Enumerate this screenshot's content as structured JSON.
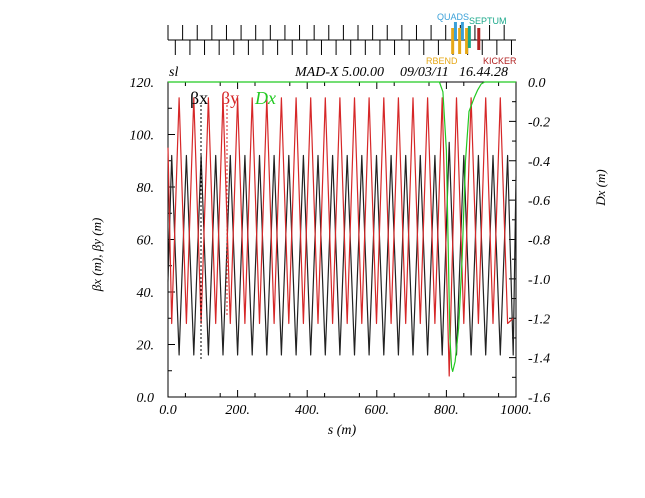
{
  "chart_data": {
    "type": "line",
    "header": {
      "left_label": "sl",
      "program": "MAD-X 5.00.00",
      "date": "09/03/11",
      "time": "16.44.28"
    },
    "xlabel": "s (m)",
    "ylabel_left": "βx (m), βy (m)",
    "ylabel_right": "Dx (m)",
    "xlim": [
      0,
      1000
    ],
    "ylim_left": [
      0,
      120
    ],
    "ylim_right": [
      -1.6,
      0
    ],
    "x_ticks": [
      0,
      200,
      400,
      600,
      800,
      1000
    ],
    "x_tick_labels": [
      "0.0",
      "200.",
      "400.",
      "600.",
      "800.",
      "1000."
    ],
    "y_left_ticks": [
      0,
      20,
      40,
      60,
      80,
      100,
      120
    ],
    "y_left_tick_labels": [
      "0.0",
      "20.",
      "40.",
      "60.",
      "80.",
      "100.",
      "120."
    ],
    "y_right_ticks": [
      0,
      -0.2,
      -0.4,
      -0.6,
      -0.8,
      -1.0,
      -1.2,
      -1.4,
      -1.6
    ],
    "y_right_tick_labels": [
      "0.0",
      "-0.2",
      "-0.4",
      "-0.6",
      "-0.8",
      "-1.0",
      "-1.2",
      "-1.4",
      "-1.6"
    ],
    "legend": [
      {
        "name": "βx",
        "color": "#000000"
      },
      {
        "name": "βy",
        "color": "#d62728"
      },
      {
        "name": "Dx",
        "color": "#22c922"
      }
    ],
    "series": [
      {
        "name": "betx",
        "axis": "left",
        "color": "#222222",
        "x": [
          0,
          10.5,
          32,
          53,
          74,
          95,
          116,
          137,
          158,
          179,
          200,
          221,
          242,
          263,
          284,
          305,
          326,
          347,
          368,
          389,
          410,
          431,
          452,
          473,
          494,
          515,
          536,
          557,
          578,
          599,
          620,
          641,
          662,
          683,
          704,
          725,
          746,
          767,
          788,
          808,
          829,
          850,
          871,
          892,
          913,
          934,
          955,
          976,
          992,
          1000
        ],
        "y": [
          44,
          92,
          16,
          92,
          16,
          92,
          16,
          92,
          16,
          92,
          16,
          92,
          16,
          92,
          16,
          92,
          16,
          92,
          16,
          92,
          16,
          92,
          16,
          92,
          16,
          92,
          16,
          92,
          16,
          92,
          16,
          92,
          16,
          92,
          16,
          92,
          16,
          92,
          16,
          97,
          16,
          92,
          16,
          92,
          16,
          92,
          16,
          92,
          16,
          84
        ]
      },
      {
        "name": "bety",
        "axis": "left",
        "color": "#d62728",
        "x": [
          0,
          10.5,
          32,
          53,
          74,
          95,
          116,
          137,
          158,
          179,
          200,
          221,
          242,
          263,
          284,
          305,
          326,
          347,
          368,
          389,
          410,
          431,
          452,
          473,
          494,
          515,
          536,
          557,
          578,
          599,
          620,
          641,
          662,
          683,
          704,
          725,
          746,
          767,
          788,
          808,
          829,
          850,
          871,
          892,
          913,
          934,
          955,
          976,
          992
        ],
        "y": [
          95,
          28,
          114,
          28,
          114,
          28,
          114,
          28,
          114,
          28,
          114,
          28,
          114,
          28,
          114,
          28,
          114,
          28,
          114,
          28,
          114,
          28,
          114,
          28,
          114,
          28,
          114,
          28,
          114,
          28,
          114,
          28,
          114,
          28,
          114,
          28,
          114,
          28,
          114,
          8,
          114,
          28,
          114,
          28,
          114,
          28,
          114,
          28,
          30
        ]
      },
      {
        "name": "dx",
        "axis": "right",
        "color": "#22c922",
        "x": [
          0,
          780,
          790,
          800,
          810,
          815,
          818,
          825,
          835,
          845,
          855,
          865,
          880,
          890,
          900,
          910,
          1000
        ],
        "y": [
          0,
          0,
          -0.05,
          -0.35,
          -1.3,
          -1.45,
          -1.47,
          -1.42,
          -1.25,
          -0.9,
          -0.4,
          -0.15,
          -0.08,
          -0.04,
          -0.01,
          0,
          0
        ]
      }
    ],
    "layout_bar": {
      "labels": {
        "quads": "QUADS",
        "septum": "SEPTUM",
        "rbend": "RBEND",
        "kicker": "KICKER"
      },
      "colors": {
        "quads": "#3aa0d8",
        "septum": "#1aa88a",
        "rbend": "#e6a817",
        "kicker": "#b22222"
      },
      "quad_s": [
        0,
        21,
        42,
        63,
        84,
        105,
        126,
        147,
        168,
        189,
        210,
        231,
        252,
        273,
        294,
        315,
        336,
        357,
        378,
        399,
        420,
        441,
        462,
        483,
        504,
        525,
        546,
        567,
        588,
        609,
        630,
        651,
        672,
        693,
        714,
        735,
        756,
        777,
        798,
        819,
        840,
        861,
        882,
        903,
        924,
        945,
        966,
        987
      ],
      "rbend_s": [
        818,
        838,
        858
      ],
      "septum_s": [
        866
      ],
      "kicker_s": [
        893
      ]
    }
  }
}
